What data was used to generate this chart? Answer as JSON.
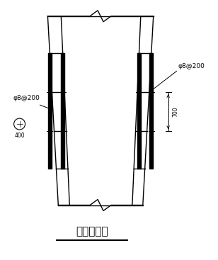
{
  "bg_color": "#ffffff",
  "line_color": "#000000",
  "title": "护壁加筋图",
  "title_fontsize": 11,
  "label_left": "φ8@200",
  "label_right": "φ8@200",
  "label_dim": "700",
  "label_circle": "400",
  "fig_width": 3.08,
  "fig_height": 3.67,
  "dpi": 100
}
